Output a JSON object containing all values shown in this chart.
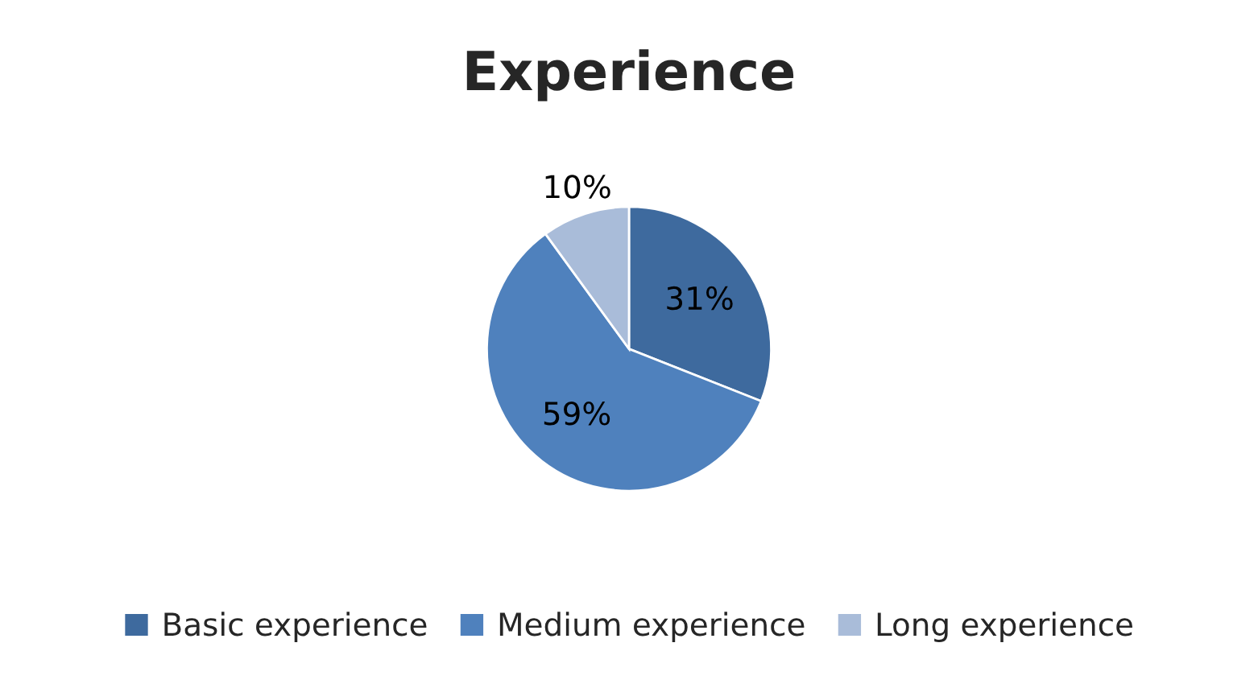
{
  "chart_data": {
    "type": "pie",
    "title": "Experience",
    "categories": [
      "Basic experience",
      "Medium experience",
      "Long experience"
    ],
    "values": [
      31,
      59,
      10
    ],
    "colors": [
      "#3e6a9e",
      "#4f81bd",
      "#a9bcd9"
    ],
    "value_labels": [
      "31%",
      "59%",
      "10%"
    ],
    "legend": "bottom"
  }
}
